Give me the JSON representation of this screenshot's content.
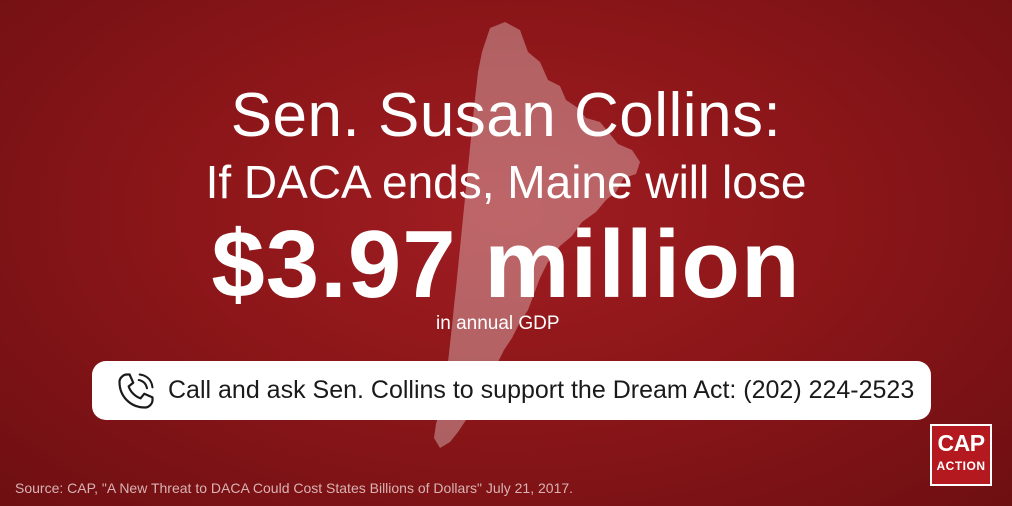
{
  "headline": {
    "title": "Sen. Susan Collins:",
    "subtitle": "If DACA ends, Maine will lose",
    "amount": "$3.97 million",
    "amount_caption": "in annual GDP"
  },
  "call_to_action": {
    "icon": "phone-icon",
    "text": "Call and ask Sen. Collins to support the Dream Act: (202) 224-2523"
  },
  "source": "Source: CAP, \"A New Threat to DACA Could Cost States Billions of Dollars\" July 21, 2017.",
  "logo": {
    "line1": "CAP",
    "line2": "ACTION"
  },
  "colors": {
    "background": "#8c1619",
    "text": "#ffffff",
    "button": "#ffffff",
    "logo": "#b3191f"
  },
  "background_image": "maine-state-silhouette"
}
